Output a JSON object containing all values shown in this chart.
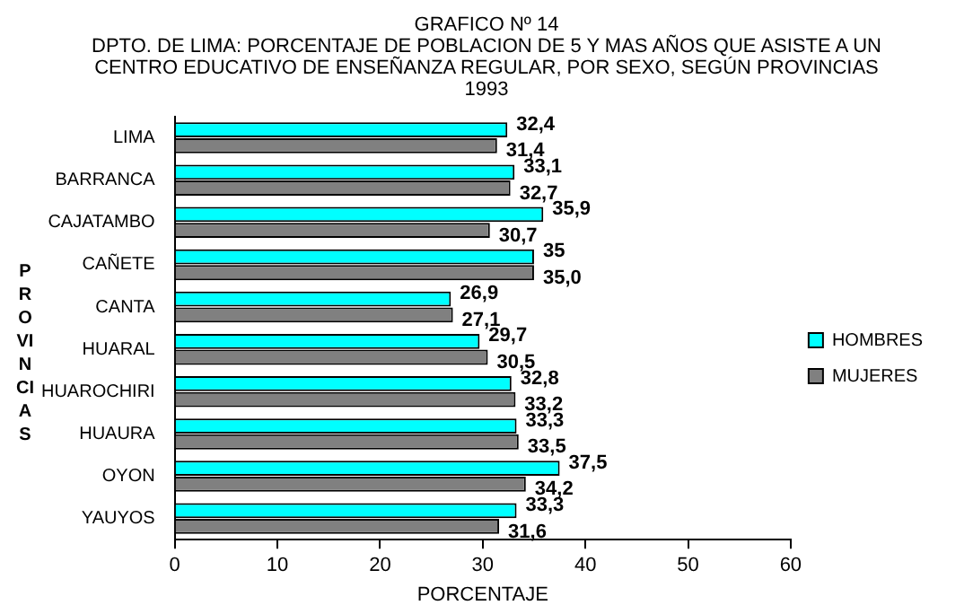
{
  "chart_data": {
    "type": "bar",
    "orientation": "horizontal",
    "title": "GRAFICO Nº 14",
    "subtitle": "DPTO. DE LIMA: PORCENTAJE DE POBLACION DE 5 Y MAS AÑOS QUE ASISTE A UN CENTRO EDUCATIVO DE ENSEÑANZA REGULAR, POR SEXO, SEGÚN PROVINCIAS 1993",
    "xlabel": "PORCENTAJE",
    "ylabel": "PROVINCIAS",
    "categories": [
      "LIMA",
      "BARRANCA",
      "CAJATAMBO",
      "CAÑETE",
      "CANTA",
      "HUARAL",
      "HUAROCHIRI",
      "HUAURA",
      "OYON",
      "YAUYOS"
    ],
    "series": [
      {
        "name": "HOMBRES",
        "color": "#00ffff",
        "values": [
          32.4,
          33.1,
          35.9,
          35,
          26.9,
          29.7,
          32.8,
          33.3,
          37.5,
          33.3
        ],
        "value_labels": [
          "32,4",
          "33,1",
          "35,9",
          "35",
          "26,9",
          "29,7",
          "32,8",
          "33,3",
          "37,5",
          "33,3"
        ]
      },
      {
        "name": "MUJERES",
        "color": "#808080",
        "values": [
          31.4,
          32.7,
          30.7,
          35.0,
          27.1,
          30.5,
          33.2,
          33.5,
          34.2,
          31.6
        ],
        "value_labels": [
          "31,4",
          "32,7",
          "30,7",
          "35,0",
          "27,1",
          "30,5",
          "33,2",
          "33,5",
          "34,2",
          "31,6"
        ]
      }
    ],
    "xlim": [
      0,
      60
    ],
    "xticks": [
      0,
      10,
      20,
      30,
      40,
      50,
      60
    ],
    "grid": false,
    "legend": "right"
  }
}
